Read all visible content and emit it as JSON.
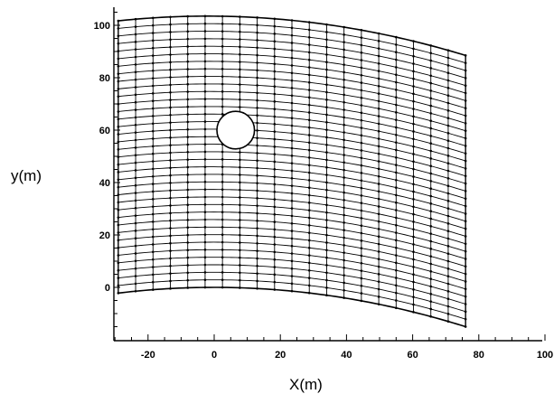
{
  "chart_data": {
    "type": "scatter",
    "xlabel": "X(m)",
    "ylabel": "y(m)",
    "xlim": [
      -30,
      100
    ],
    "ylim": [
      -15,
      105
    ],
    "x_ticks": [
      "-20",
      "0",
      "20",
      "40",
      "60",
      "80",
      "100"
    ],
    "y_ticks": [
      "0",
      "20",
      "40",
      "60",
      "80",
      "100"
    ],
    "mesh": {
      "x_start": -29,
      "x_end": 76,
      "columns": 21,
      "rows": 37,
      "top_boundary": {
        "vertex_x": -2,
        "vertex_y": 103.5,
        "y_at_x_end": 88.5
      },
      "bottom_boundary": {
        "vertex_x": 0,
        "vertex_y": 0,
        "y_at_x_end": -15
      }
    },
    "obstacle": {
      "shape": "circle",
      "center_x": 6.5,
      "center_y": 60,
      "radius": 6.5
    }
  }
}
